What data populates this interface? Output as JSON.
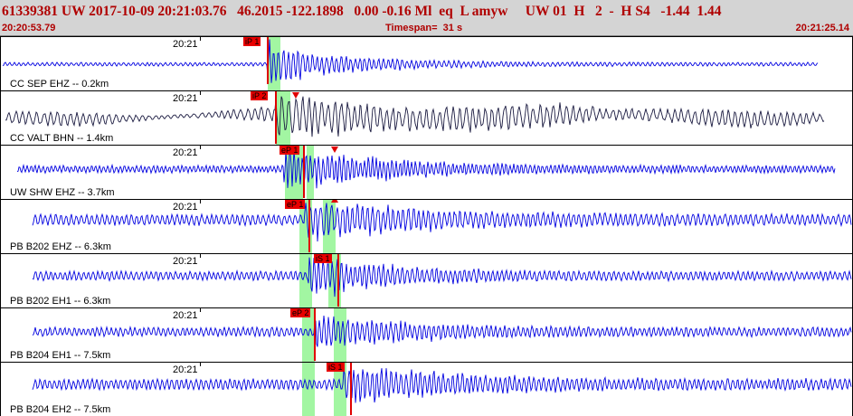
{
  "header": {
    "event_line": "61339381 UW 2017-10-09 20:21:03.76   46.2015 -122.1898   0.00 -0.16 Ml  eq  L amyw     UW 01  H   2  -  H S4   -1.44  1.44",
    "start_time": "20:20:53.79",
    "timespan": "Timespan=  31 s",
    "end_time": "20:21:25.14"
  },
  "colors": {
    "header_bg": "#d4d4d4",
    "header_text": "#b00000",
    "trace_blue": "#0000e0",
    "trace_dark": "#1a1a40",
    "pick_band": "#98f598",
    "pick_red": "#e00000"
  },
  "channels": [
    {
      "station": "CC SEP EHZ -- 0.2km",
      "tick": "20:21",
      "picks": [
        "iP 1"
      ],
      "trace": "blue"
    },
    {
      "station": "CC VALT BHN -- 1.4km",
      "tick": "20:21",
      "picks": [
        "iP 2"
      ],
      "trace": "dark"
    },
    {
      "station": "UW SHW EHZ -- 3.7km",
      "tick": "20:21",
      "picks": [
        "eP 1"
      ],
      "trace": "blue"
    },
    {
      "station": "PB B202 EHZ -- 6.3km",
      "tick": "20:21",
      "picks": [
        "eP 1"
      ],
      "trace": "blue"
    },
    {
      "station": "PB B202 EH1 -- 6.3km",
      "tick": "20:21",
      "picks": [
        "iS 1"
      ],
      "trace": "blue"
    },
    {
      "station": "PB B204 EH1 -- 7.5km",
      "tick": "20:21",
      "picks": [
        "eP 2"
      ],
      "trace": "blue"
    },
    {
      "station": "PB B204 EH2 -- 7.5km",
      "tick": "20:21",
      "picks": [
        "iS 1"
      ],
      "trace": "blue"
    }
  ]
}
